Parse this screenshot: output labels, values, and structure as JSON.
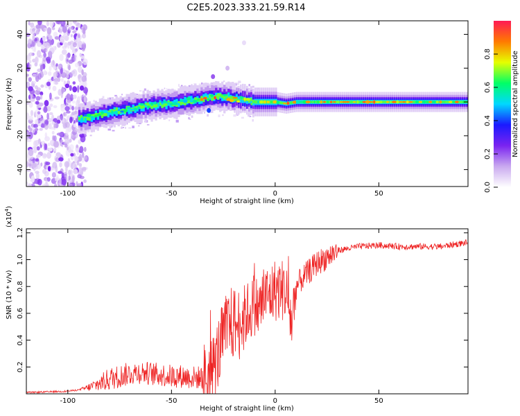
{
  "title": "C2E5.2023.333.21.59.R14",
  "chart_data": [
    {
      "type": "heatmap",
      "xlabel": "Height of straight line (km)",
      "ylabel": "Frequency (Hz)",
      "xlim": [
        -120,
        93
      ],
      "ylim": [
        -50,
        48
      ],
      "x_ticks": [
        -100,
        -50,
        0,
        50
      ],
      "y_ticks": [
        -40,
        -20,
        0,
        20,
        40
      ],
      "colorbar": {
        "label": "Normalized spectral amplitude",
        "range": [
          0.0,
          1.0
        ],
        "ticks": [
          "0.0",
          "0.2",
          "0.4",
          "0.6",
          "0.8"
        ],
        "colormap": [
          "#ffffff",
          "#c9a9ef",
          "#7a23f0",
          "#1a1aff",
          "#00d8ff",
          "#00ff66",
          "#e6ff00",
          "#ff7a00",
          "#ff1a55"
        ]
      },
      "ridge": {
        "x": [
          -95,
          -90,
          -80,
          -70,
          -60,
          -50,
          -45,
          -40,
          -35,
          -30,
          -25,
          -20,
          -15,
          -10,
          -5,
          0,
          5,
          10,
          20,
          40,
          60,
          80,
          93
        ],
        "y": [
          -10,
          -9,
          -6,
          -4,
          -2,
          -1,
          0,
          1,
          2,
          3,
          3,
          2,
          1,
          0,
          0,
          0,
          -1,
          0,
          0,
          0,
          0,
          0,
          0
        ]
      },
      "noise_region_x": [
        -120,
        -93
      ]
    },
    {
      "type": "line",
      "xlabel": "Height of straight line (km)",
      "ylabel": "SNR (10 * v/v)",
      "y_exponent": "(x10",
      "y_exponent_power": "4",
      "y_exponent_close": ")",
      "xlim": [
        -120,
        93
      ],
      "ylim": [
        0,
        1.23
      ],
      "x_ticks": [
        -100,
        -50,
        0,
        50
      ],
      "y_ticks": [
        0.2,
        0.4,
        0.6,
        0.8,
        1.0,
        1.2
      ],
      "series": [
        {
          "color": "#ee2222",
          "x": [
            -120,
            -100,
            -95,
            -90,
            -85,
            -80,
            -75,
            -70,
            -65,
            -60,
            -55,
            -50,
            -45,
            -40,
            -35,
            -30,
            -27,
            -25,
            -22,
            -20,
            -17,
            -15,
            -12,
            -10,
            -8,
            -5,
            -3,
            0,
            3,
            5,
            8,
            10,
            12,
            15,
            20,
            25,
            30,
            40,
            50,
            60,
            70,
            80,
            88,
            93
          ],
          "y": [
            0.01,
            0.02,
            0.03,
            0.05,
            0.08,
            0.12,
            0.14,
            0.16,
            0.17,
            0.16,
            0.15,
            0.14,
            0.14,
            0.13,
            0.13,
            0.2,
            0.35,
            0.45,
            0.55,
            0.55,
            0.55,
            0.6,
            0.65,
            0.7,
            0.65,
            0.75,
            0.75,
            0.8,
            0.8,
            0.8,
            0.55,
            0.8,
            0.85,
            0.9,
            0.98,
            1.03,
            1.07,
            1.1,
            1.11,
            1.1,
            1.1,
            1.1,
            1.12,
            1.13
          ]
        }
      ]
    }
  ]
}
